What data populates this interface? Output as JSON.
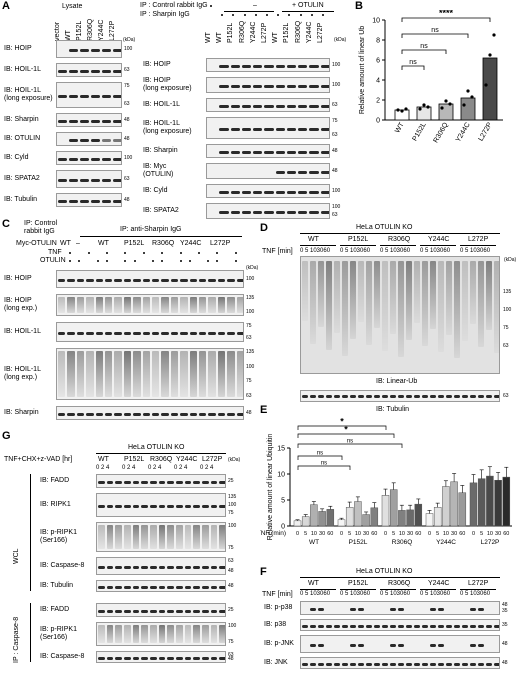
{
  "panel_labels": {
    "A": "A",
    "B": "B",
    "C": "C",
    "D": "D",
    "E": "E",
    "F": "F",
    "G": "G"
  },
  "kda": "(kDa)",
  "panelA": {
    "lysate_header": "Lysate",
    "ip_header_control": "IP : Control rabbit IgG",
    "ip_header_sharpin": "IP : Sharpin IgG",
    "minus": "–",
    "plus_otulin": "+ OTULIN",
    "lysate_lanes": [
      "vector",
      "WT",
      "P152L",
      "R306Q",
      "Y244C",
      "L272P"
    ],
    "ip_lanes": [
      "WT",
      "WT",
      "P152L",
      "R306Q",
      "Y244C",
      "L272P",
      "WT",
      "P152L",
      "R306Q",
      "Y244C",
      "L272P"
    ],
    "left_blots": [
      {
        "label": "IB: HOIP",
        "mw": [
          "100"
        ]
      },
      {
        "label": "IB: HOIL-1L",
        "mw": [
          "63"
        ]
      },
      {
        "label": "IB: HOIL-1L\n(long exposure)",
        "mw": [
          "75",
          "63"
        ]
      },
      {
        "label": "IB: Sharpin",
        "mw": [
          "48"
        ]
      },
      {
        "label": "IB: OTULIN",
        "mw": [
          "48"
        ]
      },
      {
        "label": "IB: Cyld",
        "mw": [
          "100"
        ]
      },
      {
        "label": "IB: SPATA2",
        "mw": [
          "63"
        ]
      },
      {
        "label": "IB: Tubulin",
        "mw": [
          "48"
        ]
      }
    ],
    "right_blots": [
      {
        "label": "IB: HOIP",
        "mw": [
          "100"
        ]
      },
      {
        "label": "IB: HOIP\n(long exposure)",
        "mw": [
          "100"
        ]
      },
      {
        "label": "IB: HOIL-1L",
        "mw": [
          "63"
        ]
      },
      {
        "label": "IB: HOIL-1L\n(long exposure)",
        "mw": [
          "75",
          "63"
        ]
      },
      {
        "label": "IB: Sharpin",
        "mw": [
          "48"
        ]
      },
      {
        "label": "IB: Myc\n(OTULIN)",
        "mw": [
          "48"
        ]
      },
      {
        "label": "IB: Cyld",
        "mw": [
          "100"
        ]
      },
      {
        "label": "IB: SPATA2",
        "mw": [
          "100",
          "63"
        ]
      }
    ]
  },
  "chart_data": [
    {
      "type": "bar",
      "panel": "B",
      "ylabel": "Relative amount of linear Ub",
      "ylim": [
        0,
        10
      ],
      "yticks": [
        "0",
        "2",
        "4",
        "6",
        "8",
        "10"
      ],
      "categories": [
        "WT",
        "P152L",
        "R306Q",
        "Y244C",
        "L272P"
      ],
      "values": [
        1.0,
        1.3,
        1.6,
        2.2,
        6.2
      ],
      "bar_colors": [
        "#ffffff",
        "#e6e6e6",
        "#b8b8b8",
        "#8a8a8a",
        "#4a4a4a"
      ],
      "points": [
        [
          1.0,
          0.9,
          1.1
        ],
        [
          1.1,
          1.5,
          1.3
        ],
        [
          1.2,
          1.9,
          1.6
        ],
        [
          1.5,
          2.9,
          2.3
        ],
        [
          3.5,
          6.5,
          8.5
        ]
      ],
      "annotations": [
        {
          "text": "****",
          "from": "WT",
          "to": "L272P"
        },
        {
          "text": "ns",
          "from": "WT",
          "to": "Y244C"
        },
        {
          "text": "ns",
          "from": "WT",
          "to": "R306Q"
        },
        {
          "text": "ns",
          "from": "WT",
          "to": "P152L"
        }
      ]
    },
    {
      "type": "bar",
      "panel": "E",
      "ylabel": "Relative amount of linear Ubiquitin",
      "ylim": [
        0,
        15
      ],
      "yticks": [
        "0",
        "5",
        "10",
        "15"
      ],
      "groups": [
        "WT",
        "P152L",
        "R306Q",
        "Y244C",
        "L272P"
      ],
      "times": [
        "0",
        "5",
        "10",
        "30",
        "60"
      ],
      "xlabel": "TNF (min)",
      "values": [
        [
          1.0,
          1.8,
          4.1,
          2.8,
          3.2
        ],
        [
          1.2,
          3.6,
          4.7,
          2.2,
          3.5
        ],
        [
          5.9,
          7.0,
          3.0,
          3.1,
          4.2
        ],
        [
          2.4,
          3.6,
          7.6,
          8.5,
          6.4
        ],
        [
          8.3,
          9.1,
          9.6,
          8.8,
          9.4
        ]
      ],
      "errors": [
        [
          0.2,
          0.4,
          0.6,
          0.5,
          0.6
        ],
        [
          0.3,
          1.0,
          0.9,
          0.5,
          1.0
        ],
        [
          1.2,
          1.3,
          1.0,
          0.9,
          1.0
        ],
        [
          0.6,
          0.8,
          1.1,
          1.6,
          1.4
        ],
        [
          1.6,
          1.7,
          1.8,
          1.5,
          1.9
        ]
      ],
      "palettes": [
        [
          "#f0f0f0",
          "#d8d8d8",
          "#b0b0b0",
          "#909090",
          "#707070"
        ],
        [
          "#f5f5f5",
          "#e0e0e0",
          "#c0c0c0",
          "#a0a0a0",
          "#808080"
        ],
        [
          "#e0e0e0",
          "#a0a0a0",
          "#808080",
          "#6a6a6a",
          "#505050"
        ],
        [
          "#f5f5f5",
          "#e5e5e5",
          "#d0d0d0",
          "#b5b5b5",
          "#9a9a9a"
        ],
        [
          "#6a6a6a",
          "#5a5a5a",
          "#4a4a4a",
          "#3a3a3a",
          "#2a2a2a"
        ]
      ],
      "annotations": [
        {
          "text": "*",
          "from": "WT",
          "to": "R306Q"
        },
        {
          "text": "*",
          "from": "WT",
          "to": "R306Q"
        },
        {
          "text": "ns",
          "from": "WT",
          "to": "R306Q"
        },
        {
          "text": "ns",
          "from": "WT",
          "to": "P152L"
        },
        {
          "text": "ns",
          "from": "WT",
          "to": "P152L"
        }
      ]
    }
  ],
  "panelC": {
    "ip_control": "IP: Control\nrabbit IgG",
    "ip_sharpin": "IP: anti-Sharpin IgG",
    "row_myc": "Myc-OTULIN",
    "row_tnf": "TNF",
    "row_otulin": "OTULIN",
    "myc_groups": [
      "WT",
      "–",
      "WT",
      "P152L",
      "R306Q",
      "Y244C",
      "L272P"
    ],
    "blots": [
      {
        "label": "IB: HOIP",
        "mw": [
          "100"
        ]
      },
      {
        "label": "IB: HOIP\n(long exp.)",
        "mw": [
          "135",
          "100"
        ]
      },
      {
        "label": "IB: HOIL-1L",
        "mw": [
          "75",
          "63"
        ]
      },
      {
        "label": "IB: HOIL-1L\n(long exp.)",
        "mw": [
          "135",
          "100",
          "75",
          "63"
        ]
      },
      {
        "label": "IB: Sharpin",
        "mw": [
          "48"
        ]
      }
    ]
  },
  "panelD": {
    "title": "HeLa OTULIN KO",
    "tnf": "TNF [min]",
    "groups": [
      "WT",
      "P152L",
      "R306Q",
      "Y244C",
      "L272P"
    ],
    "times": "0  5  103060",
    "ib_linear": "IB: Linear-Ub",
    "ib_tubulin": "IB: Tubulin",
    "mw": [
      "135",
      "100",
      "75",
      "63"
    ],
    "mw_tub": "63"
  },
  "panelF": {
    "title": "HeLa OTULIN KO",
    "tnf": "TNF [min]",
    "groups": [
      "WT",
      "P152L",
      "R306Q",
      "Y244C",
      "L272P"
    ],
    "times": "0  5  103060",
    "blots": [
      {
        "label": "IB: p-p38",
        "mw": [
          "48",
          "35"
        ]
      },
      {
        "label": "IB: p38",
        "mw": [
          "35"
        ]
      },
      {
        "label": "IB: p-JNK",
        "mw": [
          "48"
        ]
      },
      {
        "label": "IB: JNK",
        "mw": [
          "48"
        ]
      }
    ]
  },
  "panelG": {
    "title": "HeLa OTULIN KO",
    "treat": "TNF+CHX+z-VAD [hr]",
    "groups": [
      "WT",
      "P152L",
      "R306Q",
      "Y244C",
      "L272P"
    ],
    "times": "0  2  4",
    "wcl": "WCL",
    "ip": "IP : Caspase-8",
    "wcl_blots": [
      {
        "label": "IB: FADD",
        "mw": [
          "25"
        ]
      },
      {
        "label": "IB: RIPK1",
        "mw": [
          "135",
          "100",
          "75"
        ]
      },
      {
        "label": "IB: p-RIPK1\n(Ser166)",
        "mw": [
          "100",
          "75"
        ]
      },
      {
        "label": "IB: Caspase-8",
        "mw": [
          "63",
          "48"
        ]
      },
      {
        "label": "IB: Tubulin",
        "mw": [
          "48"
        ]
      }
    ],
    "ip_blots": [
      {
        "label": "IB: FADD",
        "mw": [
          "25"
        ]
      },
      {
        "label": "IB: p-RIPK1\n(Ser166)",
        "mw": [
          "100",
          "75"
        ]
      },
      {
        "label": "IB: Caspase-8",
        "mw": [
          "63",
          "48"
        ]
      }
    ]
  }
}
